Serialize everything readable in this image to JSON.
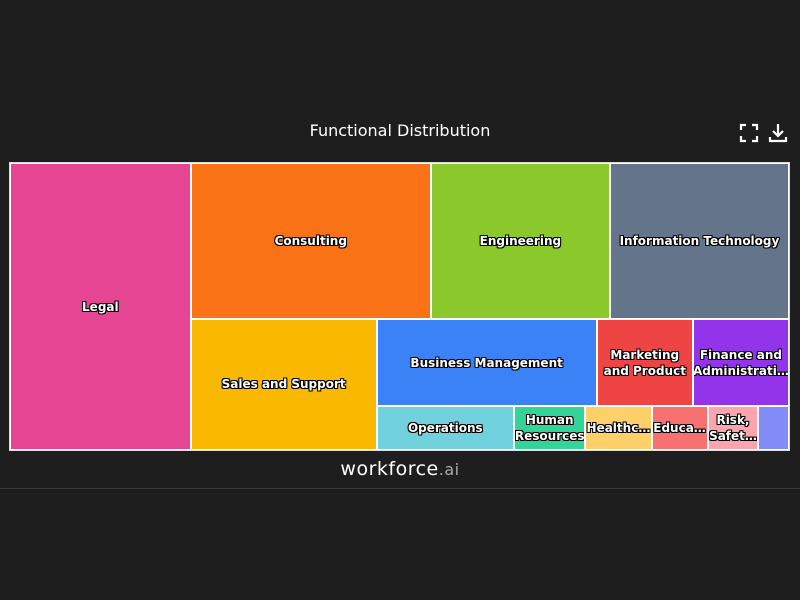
{
  "chart_data": {
    "type": "treemap",
    "title": "Functional Distribution",
    "categories": [
      "Legal",
      "Consulting",
      "Engineering",
      "Information Technology",
      "Sales and Support",
      "Business Management",
      "Marketing and Product",
      "Finance and Administrati…",
      "Operations",
      "Human Resources",
      "Healthc…",
      "Educa…",
      "Risk, Safet…",
      null
    ],
    "values": [
      234,
      169,
      126,
      126,
      110,
      87,
      38,
      38,
      27,
      14,
      13,
      11,
      10,
      6
    ],
    "colors": [
      "#e64594",
      "#f97316",
      "#8bc82b",
      "#64748b",
      "#fbb800",
      "#3b82f6",
      "#ef4444",
      "#9333ea",
      "#70d0dc",
      "#34d399",
      "#fdd06a",
      "#f87171",
      "#fda4af",
      "#818cf8"
    ]
  },
  "footer": {
    "brand": "workforce",
    "suffix": ".ai"
  }
}
